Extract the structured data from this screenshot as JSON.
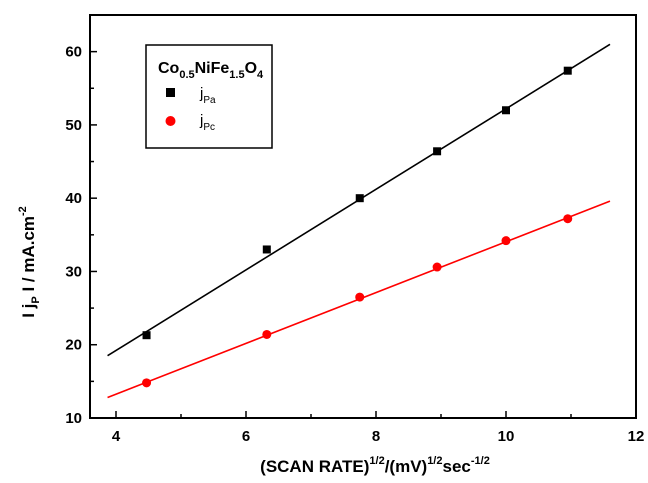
{
  "chart_data": {
    "type": "scatter",
    "xlabel": {
      "base": "(SCAN RATE)",
      "sup1": "1/2",
      "mid": "/(mV)",
      "sup2": "1/2",
      "tail": "sec",
      "sup3": "-1/2"
    },
    "ylabel": {
      "a": "I j",
      "sub": "P",
      "b": " I / mA.cm",
      "sup": "-2"
    },
    "xlim": [
      3.6,
      12
    ],
    "ylim": [
      10,
      65
    ],
    "x_ticks": [
      4,
      6,
      8,
      10,
      12
    ],
    "y_ticks": [
      10,
      20,
      30,
      40,
      50,
      60
    ],
    "grid": false,
    "legend": {
      "position": "top-left",
      "title": {
        "a": "Co",
        "s1": "0.5",
        "b": "NiFe",
        "s2": "1.5",
        "c": "O",
        "s3": "4"
      }
    },
    "series": [
      {
        "label_main": "j",
        "label_sub": "Pa",
        "color": "#000000",
        "marker": "square",
        "x": [
          4.47,
          6.32,
          7.75,
          8.94,
          10.0,
          10.95
        ],
        "y": [
          21.3,
          33.0,
          40.0,
          46.4,
          52.0,
          57.4
        ],
        "fit": {
          "x": [
            3.87,
            11.6
          ],
          "y": [
            18.5,
            61.0
          ]
        }
      },
      {
        "label_main": "j",
        "label_sub": "Pc",
        "color": "#ff0000",
        "marker": "circle",
        "x": [
          4.47,
          6.32,
          7.75,
          8.94,
          10.0,
          10.95
        ],
        "y": [
          14.8,
          21.4,
          26.5,
          30.6,
          34.2,
          37.2
        ],
        "fit": {
          "x": [
            3.87,
            11.6
          ],
          "y": [
            12.8,
            39.6
          ]
        }
      }
    ]
  }
}
